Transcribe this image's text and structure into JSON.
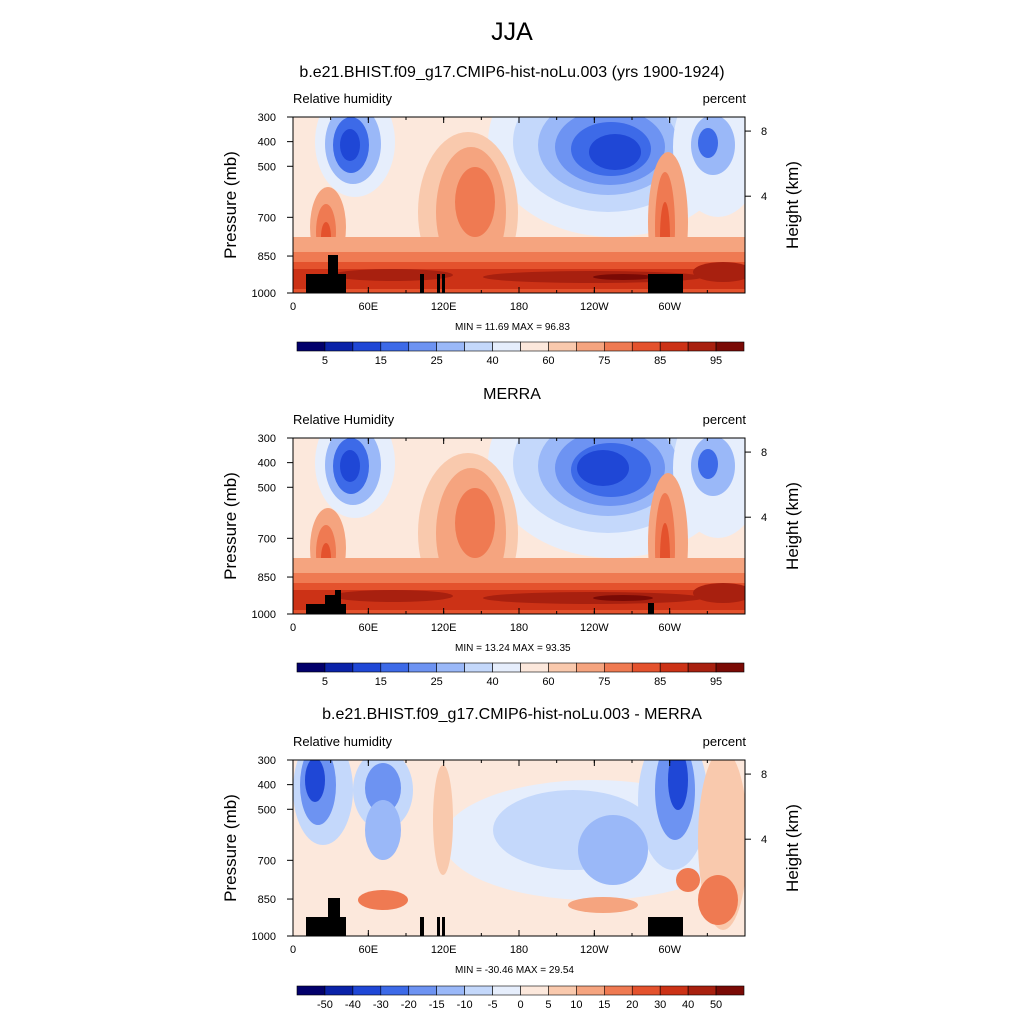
{
  "title": "JJA",
  "chart_data": [
    {
      "type": "heatmap",
      "title": "b.e21.BHIST.f09_g17.CMIP6-hist-noLu.003 (yrs 1900-1924)",
      "left_label": "Relative humidity",
      "right_label": "percent",
      "ylabel": "Pressure (mb)",
      "y2label": "Height (km)",
      "xticks": [
        "0",
        "60E",
        "120E",
        "180",
        "120W",
        "60W"
      ],
      "yticks": [
        "300",
        "400",
        "500",
        "700",
        "850",
        "1000"
      ],
      "y2ticks": [
        "8",
        "4"
      ],
      "stats": "MIN =  11.69  MAX =  96.83",
      "min": 11.69,
      "max": 96.83,
      "colorbar_labels": [
        "5",
        "15",
        "25",
        "40",
        "60",
        "75",
        "85",
        "95"
      ],
      "colorbar_colors": [
        "#02006b",
        "#0a22a8",
        "#1f47d6",
        "#3d6ae8",
        "#6d93f2",
        "#9ab8f8",
        "#c4d8fb",
        "#e6eefc",
        "#fce8dc",
        "#f9c9ad",
        "#f5a47f",
        "#ef7a52",
        "#e4522d",
        "#cc3216",
        "#a8200f",
        "#7a0a05"
      ]
    },
    {
      "type": "heatmap",
      "title": "MERRA",
      "left_label": "Relative Humidity",
      "right_label": "percent",
      "ylabel": "Pressure (mb)",
      "y2label": "Height (km)",
      "xticks": [
        "0",
        "60E",
        "120E",
        "180",
        "120W",
        "60W"
      ],
      "yticks": [
        "300",
        "400",
        "500",
        "700",
        "850",
        "1000"
      ],
      "y2ticks": [
        "8",
        "4"
      ],
      "stats": "MIN =  13.24  MAX =  93.35",
      "min": 13.24,
      "max": 93.35,
      "colorbar_labels": [
        "5",
        "15",
        "25",
        "40",
        "60",
        "75",
        "85",
        "95"
      ],
      "colorbar_colors": [
        "#02006b",
        "#0a22a8",
        "#1f47d6",
        "#3d6ae8",
        "#6d93f2",
        "#9ab8f8",
        "#c4d8fb",
        "#e6eefc",
        "#fce8dc",
        "#f9c9ad",
        "#f5a47f",
        "#ef7a52",
        "#e4522d",
        "#cc3216",
        "#a8200f",
        "#7a0a05"
      ]
    },
    {
      "type": "heatmap",
      "title": "b.e21.BHIST.f09_g17.CMIP6-hist-noLu.003 - MERRA",
      "left_label": "Relative humidity",
      "right_label": "percent",
      "ylabel": "Pressure (mb)",
      "y2label": "Height (km)",
      "xticks": [
        "0",
        "60E",
        "120E",
        "180",
        "120W",
        "60W"
      ],
      "yticks": [
        "300",
        "400",
        "500",
        "700",
        "850",
        "1000"
      ],
      "y2ticks": [
        "8",
        "4"
      ],
      "stats": "MIN = -30.46  MAX =  29.54",
      "min": -30.46,
      "max": 29.54,
      "colorbar_labels": [
        "-50",
        "-40",
        "-30",
        "-20",
        "-15",
        "-10",
        "-5",
        "0",
        "5",
        "10",
        "15",
        "20",
        "30",
        "40",
        "50"
      ],
      "colorbar_colors": [
        "#02006b",
        "#0a22a8",
        "#1f47d6",
        "#3d6ae8",
        "#6d93f2",
        "#9ab8f8",
        "#c4d8fb",
        "#e6eefc",
        "#fce8dc",
        "#f9c9ad",
        "#f5a47f",
        "#ef7a52",
        "#e4522d",
        "#cc3216",
        "#a8200f",
        "#7a0a05"
      ]
    }
  ]
}
